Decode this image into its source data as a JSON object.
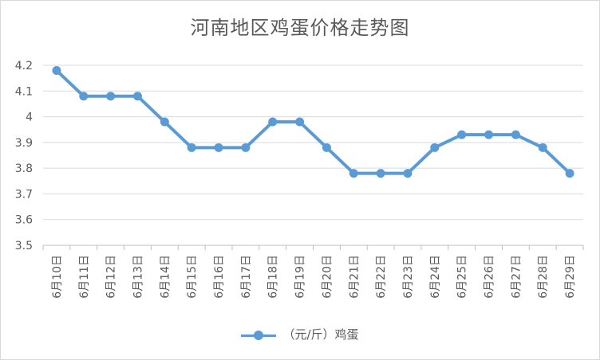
{
  "chart_data": {
    "type": "line",
    "title": "河南地区鸡蛋价格走势图",
    "categories": [
      "6月10日",
      "6月11日",
      "6月12日",
      "6月13日",
      "6月14日",
      "6月15日",
      "6月16日",
      "6月17日",
      "6月18日",
      "6月19日",
      "6月20日",
      "6月21日",
      "6月22日",
      "6月23日",
      "6月24日",
      "6月25日",
      "6月26日",
      "6月27日",
      "6月28日",
      "6月29日"
    ],
    "series": [
      {
        "name": "（元/斤）鸡蛋",
        "values": [
          4.18,
          4.08,
          4.08,
          4.08,
          3.98,
          3.88,
          3.88,
          3.88,
          3.98,
          3.98,
          3.88,
          3.78,
          3.78,
          3.78,
          3.88,
          3.93,
          3.93,
          3.93,
          3.88,
          3.78
        ],
        "color": "#5b9bd5"
      }
    ],
    "ylim": [
      3.5,
      4.2
    ],
    "yticks": [
      "3.5",
      "3.6",
      "3.7",
      "3.8",
      "3.9",
      "4",
      "4.1",
      "4.2"
    ],
    "grid": true,
    "legend_position": "bottom"
  }
}
